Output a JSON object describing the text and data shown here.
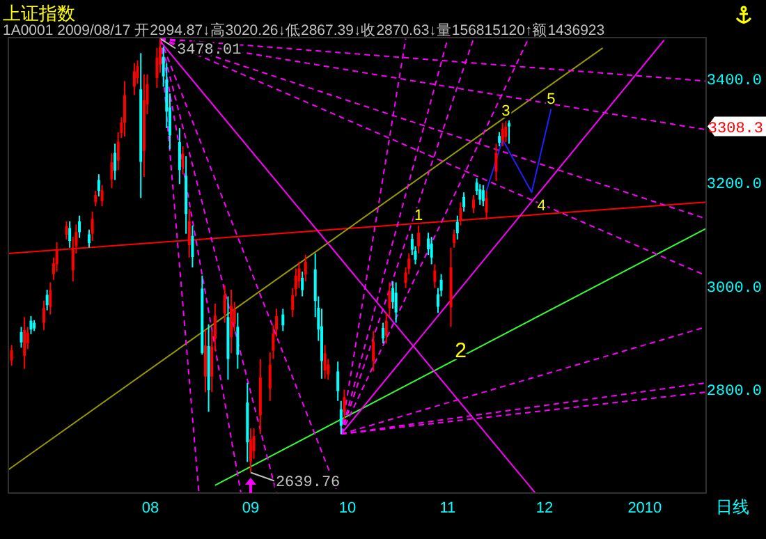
{
  "chart_data": {
    "type": "candlestick",
    "title": "上证指数",
    "subtitle": "1A0001 2009/08/17 开2994.87↓高3020.26↓低2867.39↓收2870.63↓量156815120↑额1436923",
    "x": [
      "2009-06-19",
      "2009-06-22",
      "2009-06-23",
      "2009-06-24",
      "2009-06-25",
      "2009-06-26",
      "2009-06-29",
      "2009-06-30",
      "2009-07-01",
      "2009-07-02",
      "2009-07-03",
      "2009-07-06",
      "2009-07-07",
      "2009-07-08",
      "2009-07-09",
      "2009-07-10",
      "2009-07-13",
      "2009-07-14",
      "2009-07-15",
      "2009-07-16",
      "2009-07-17",
      "2009-07-20",
      "2009-07-21",
      "2009-07-22",
      "2009-07-23",
      "2009-07-24",
      "2009-07-27",
      "2009-07-28",
      "2009-07-29",
      "2009-07-30",
      "2009-07-31",
      "2009-08-03",
      "2009-08-04",
      "2009-08-05",
      "2009-08-06",
      "2009-08-07",
      "2009-08-10",
      "2009-08-11",
      "2009-08-12",
      "2009-08-13",
      "2009-08-14",
      "2009-08-17",
      "2009-08-18",
      "2009-08-19",
      "2009-08-20",
      "2009-08-21",
      "2009-08-24",
      "2009-08-25",
      "2009-08-26",
      "2009-08-27",
      "2009-08-28",
      "2009-08-31",
      "2009-09-01",
      "2009-09-02",
      "2009-09-04",
      "2009-09-07",
      "2009-09-08",
      "2009-09-09",
      "2009-09-11",
      "2009-09-14",
      "2009-09-15",
      "2009-09-16",
      "2009-09-17",
      "2009-09-18",
      "2009-09-21",
      "2009-09-22",
      "2009-09-23",
      "2009-09-24",
      "2009-09-25",
      "2009-09-28",
      "2009-09-29",
      "2009-09-30",
      "2009-10-09",
      "2009-10-12",
      "2009-10-13",
      "2009-10-14",
      "2009-10-15",
      "2009-10-16",
      "2009-10-19",
      "2009-10-20",
      "2009-10-21",
      "2009-10-22",
      "2009-10-23",
      "2009-10-26",
      "2009-10-27",
      "2009-10-28",
      "2009-10-29",
      "2009-10-30",
      "2009-11-02",
      "2009-11-03",
      "2009-11-04",
      "2009-11-05",
      "2009-11-06",
      "2009-11-09",
      "2009-11-10",
      "2009-11-11",
      "2009-11-12",
      "2009-11-13",
      "2009-11-16",
      "2009-11-17",
      "2009-11-18",
      "2009-11-19",
      "2009-11-20"
    ],
    "ohlc": [
      [
        2856,
        2886,
        2846,
        2876
      ],
      [
        2911,
        2921,
        2881,
        2891
      ],
      [
        2865,
        2940,
        2840,
        2915
      ],
      [
        2889,
        2921,
        2878,
        2910
      ],
      [
        2933,
        2942,
        2907,
        2916
      ],
      [
        2929,
        2934,
        2913,
        2918
      ],
      [
        2929,
        2972,
        2915,
        2958
      ],
      [
        2983,
        2993,
        2953,
        2963
      ],
      [
        2960,
        3007,
        2945,
        2992
      ],
      [
        3023,
        3055,
        3012,
        3044
      ],
      [
        3042,
        3085,
        3028,
        3071
      ],
      [
        3099,
        3125,
        3090,
        3116
      ],
      [
        3112,
        3125,
        3074,
        3087
      ],
      [
        3030,
        3095,
        3009,
        3074
      ],
      [
        3077,
        3119,
        3063,
        3105
      ],
      [
        3125,
        3136,
        3093,
        3104
      ],
      [
        3100,
        3109,
        3074,
        3083
      ],
      [
        3101,
        3144,
        3087,
        3130
      ],
      [
        3162,
        3184,
        3154,
        3176
      ],
      [
        3205,
        3216,
        3173,
        3184
      ],
      [
        3164,
        3195,
        3154,
        3185
      ],
      [
        3206,
        3256,
        3189,
        3239
      ],
      [
        3257,
        3275,
        3205,
        3223
      ],
      [
        3242,
        3297,
        3224,
        3279
      ],
      [
        3296,
        3326,
        3286,
        3316
      ],
      [
        3316,
        3396,
        3289,
        3369
      ],
      [
        3385,
        3431,
        3369,
        3415
      ],
      [
        3402,
        3436,
        3391,
        3425
      ],
      [
        3380,
        3450,
        3170,
        3240
      ],
      [
        3261,
        3409,
        3211,
        3359
      ],
      [
        3351,
        3409,
        3332,
        3390
      ],
      [
        3402,
        3460,
        3383,
        3441
      ],
      [
        3428,
        3478.01,
        3412,
        3462
      ],
      [
        3443,
        3463,
        3385,
        3405
      ],
      [
        3399,
        3431,
        3305,
        3337
      ],
      [
        3345,
        3372,
        3264,
        3291
      ],
      [
        3278,
        3305,
        3197,
        3224
      ],
      [
        3230,
        3270,
        3216,
        3256
      ],
      [
        3213,
        3251,
        3101,
        3139
      ],
      [
        3079,
        3149,
        3055,
        3125
      ],
      [
        3097,
        3117,
        3036,
        3056
      ],
      [
        2994.87,
        3020.26,
        2867.39,
        2870.63
      ],
      [
        2825,
        2915,
        2795,
        2885
      ],
      [
        2884,
        2926,
        2757,
        2799
      ],
      [
        2825,
        2913,
        2795,
        2883
      ],
      [
        2898,
        2966,
        2875,
        2943
      ],
      [
        2947,
        3001,
        2929,
        2983
      ],
      [
        2940,
        2980,
        2819,
        2859
      ],
      [
        2901,
        2993,
        2870,
        2962
      ],
      [
        2927,
        2969,
        2913,
        2955
      ],
      [
        2921,
        2948,
        2840,
        2867
      ],
      [
        2775,
        2813,
        2660,
        2698
      ],
      [
        2661,
        2725,
        2639.76,
        2704
      ],
      [
        2681,
        2725,
        2666,
        2710
      ],
      [
        2750,
        2859,
        2714,
        2823
      ],
      [
        2802,
        2872,
        2778,
        2848
      ],
      [
        2875,
        2924,
        2859,
        2908
      ],
      [
        2916,
        2956,
        2902,
        2942
      ],
      [
        2945,
        2956,
        2913,
        2924
      ],
      [
        2954,
        2996,
        2940,
        2982
      ],
      [
        2994,
        3034,
        2980,
        3020
      ],
      [
        3009,
        3047,
        2996,
        3034
      ],
      [
        3016,
        3028,
        2980,
        2992
      ],
      [
        3022,
        3060,
        3009,
        3047
      ],
      [
        3032,
        3063,
        2940,
        2971
      ],
      [
        2958,
        2980,
        2894,
        2916
      ],
      [
        2922,
        2956,
        2821,
        2855
      ],
      [
        2837,
        2886,
        2821,
        2870
      ],
      [
        2829,
        2859,
        2819,
        2849
      ],
      [
        2835,
        2854,
        2778,
        2797
      ],
      [
        2762,
        2778,
        2714,
        2730
      ],
      [
        2756,
        2800,
        2741,
        2785
      ],
      [
        2855,
        2913,
        2835,
        2893
      ],
      [
        2919,
        2929,
        2889,
        2899
      ],
      [
        2904,
        2948,
        2889,
        2933
      ],
      [
        2957,
        3007,
        2940,
        2990
      ],
      [
        2996,
        3009,
        2956,
        2969
      ],
      [
        2987,
        3007,
        2929,
        2949
      ],
      [
        3006,
        3036,
        2996,
        3026
      ],
      [
        3033,
        3063,
        3023,
        3053
      ],
      [
        3091,
        3101,
        3060,
        3070
      ],
      [
        3068,
        3077,
        3042,
        3051
      ],
      [
        3077,
        3117,
        3063,
        3103
      ],
      [
        3092,
        3103,
        3060,
        3071
      ],
      [
        3082,
        3095,
        3042,
        3055
      ],
      [
        3008,
        3042,
        2996,
        3030
      ],
      [
        2984,
        2996,
        2948,
        2960
      ],
      [
        3012,
        3023,
        2980,
        2991
      ],
      [
        2959,
        3074,
        2921,
        3036
      ],
      [
        3083,
        3109,
        3074,
        3100
      ],
      [
        3124,
        3136,
        3090,
        3102
      ],
      [
        3128,
        3162,
        3117,
        3151
      ],
      [
        3172,
        3181,
        3144,
        3153
      ],
      [
        3150,
        3176,
        3141,
        3167
      ],
      [
        3200,
        3208,
        3176,
        3184
      ],
      [
        3187,
        3197,
        3157,
        3167
      ],
      [
        3185,
        3195,
        3154,
        3164
      ],
      [
        3142,
        3184,
        3128,
        3170
      ],
      [
        3221,
        3275,
        3203,
        3257
      ],
      [
        3290,
        3297,
        3270,
        3277
      ],
      [
        3281,
        3315,
        3270,
        3304
      ],
      [
        3288,
        3318,
        3278,
        3308
      ],
      [
        3315,
        3320,
        3275,
        3308.3
      ]
    ],
    "colors": [
      "#ff0000",
      "#00ffff",
      "#ff0000",
      "#ff0000",
      "#00ffff",
      "#00ffff",
      "#ff0000",
      "#00ffff",
      "#ff0000",
      "#ff0000",
      "#ff0000",
      "#ff0000",
      "#00ffff",
      "#ff0000",
      "#ff0000",
      "#00ffff",
      "#00ffff",
      "#ff0000",
      "#ff0000",
      "#00ffff",
      "#ff0000",
      "#ff0000",
      "#00ffff",
      "#ff0000",
      "#ff0000",
      "#ff0000",
      "#ff0000",
      "#ff0000",
      "#00ffff",
      "#ff0000",
      "#ff0000",
      "#ff0000",
      "#ff0000",
      "#00ffff",
      "#00ffff",
      "#00ffff",
      "#00ffff",
      "#ff0000",
      "#00ffff",
      "#ff0000",
      "#00ffff",
      "#00ffff",
      "#ff0000",
      "#00ffff",
      "#ff0000",
      "#ff0000",
      "#ff0000",
      "#00ffff",
      "#ff0000",
      "#ff0000",
      "#00ffff",
      "#00ffff",
      "#ff0000",
      "#ff0000",
      "#ff0000",
      "#ff0000",
      "#ff0000",
      "#ff0000",
      "#00ffff",
      "#ff0000",
      "#ff0000",
      "#ff0000",
      "#00ffff",
      "#ff0000",
      "#00ffff",
      "#00ffff",
      "#00ffff",
      "#ff0000",
      "#ff0000",
      "#00ffff",
      "#00ffff",
      "#ff0000",
      "#ff0000",
      "#00ffff",
      "#ff0000",
      "#ff0000",
      "#00ffff",
      "#00ffff",
      "#ff0000",
      "#ff0000",
      "#00ffff",
      "#00ffff",
      "#ff0000",
      "#00ffff",
      "#00ffff",
      "#ff0000",
      "#00ffff",
      "#00ffff",
      "#ff0000",
      "#ff0000",
      "#00ffff",
      "#ff0000",
      "#00ffff",
      "#ff0000",
      "#00ffff",
      "#00ffff",
      "#00ffff",
      "#ff0000",
      "#ff0000",
      "#00ffff",
      "#ff0000",
      "#ff0000",
      "#00ffff"
    ],
    "series": [
      {
        "type": "line",
        "color": "#ff0000",
        "x": [
          "2009-06-18",
          "2010-01-20"
        ],
        "values": [
          3063,
          3162
        ]
      },
      {
        "type": "line",
        "color": "#999900",
        "x": [
          "2009-06-18",
          "2009-12-19"
        ],
        "values": [
          2645,
          3460
        ]
      },
      {
        "type": "line",
        "color": "#33ff33",
        "x": [
          "2009-08-21",
          "2010-01-20"
        ],
        "values": [
          2615,
          3111
        ]
      },
      {
        "type": "line",
        "color": "#ff00ff",
        "x": [
          "2009-08-04",
          "2009-11-28"
        ],
        "values": [
          3473,
          2601
        ]
      },
      {
        "type": "line",
        "color": "#ff00ff",
        "x": [
          "2009-09-29",
          "2010-01-07"
        ],
        "values": [
          2714,
          3475
        ]
      },
      {
        "type": "line",
        "color": "#ff00ff",
        "line_style": "dashed",
        "x": [
          "2009-08-04",
          "2010-01-20"
        ],
        "values": [
          3478,
          3396
        ]
      },
      {
        "type": "line",
        "color": "#ff00ff",
        "line_style": "dashed",
        "x": [
          "2009-08-04",
          "2010-01-20"
        ],
        "values": [
          3478,
          3302
        ]
      },
      {
        "type": "line",
        "color": "#ff00ff",
        "line_style": "dashed",
        "x": [
          "2009-08-04",
          "2010-01-20"
        ],
        "values": [
          3478,
          3130
        ]
      },
      {
        "type": "line",
        "color": "#ff00ff",
        "line_style": "dashed",
        "x": [
          "2009-08-04",
          "2010-01-20"
        ],
        "values": [
          3478,
          3020
        ]
      },
      {
        "type": "line",
        "color": "#ff00ff",
        "line_style": "dashed",
        "x": [
          "2009-08-04",
          "2009-08-16"
        ],
        "values": [
          3478,
          2600
        ]
      },
      {
        "type": "line",
        "color": "#ff00ff",
        "line_style": "dashed",
        "x": [
          "2009-08-04",
          "2009-08-29"
        ],
        "values": [
          3478,
          2600
        ]
      },
      {
        "type": "line",
        "color": "#ff00ff",
        "line_style": "dashed",
        "x": [
          "2009-08-04",
          "2009-09-09"
        ],
        "values": [
          3478,
          2600
        ]
      },
      {
        "type": "line",
        "color": "#ff00ff",
        "line_style": "dashed",
        "x": [
          "2009-08-04",
          "2009-09-28"
        ],
        "values": [
          3478,
          2600
        ]
      },
      {
        "type": "line",
        "color": "#ff00ff",
        "line_style": "dashed",
        "x": [
          "2009-09-29",
          "2009-10-19"
        ],
        "values": [
          2714,
          3478
        ]
      },
      {
        "type": "line",
        "color": "#ff00ff",
        "line_style": "dashed",
        "x": [
          "2009-09-29",
          "2009-11-01"
        ],
        "values": [
          2714,
          3478
        ]
      },
      {
        "type": "line",
        "color": "#ff00ff",
        "line_style": "dashed",
        "x": [
          "2009-09-29",
          "2009-11-09"
        ],
        "values": [
          2714,
          3478
        ]
      },
      {
        "type": "line",
        "color": "#ff00ff",
        "line_style": "dashed",
        "x": [
          "2009-09-29",
          "2009-11-26"
        ],
        "values": [
          2714,
          3478
        ]
      },
      {
        "type": "line",
        "color": "#ff00ff",
        "line_style": "dashed",
        "x": [
          "2009-09-29",
          "2010-01-20"
        ],
        "values": [
          2714,
          2921
        ]
      },
      {
        "type": "line",
        "color": "#ff00ff",
        "line_style": "dashed",
        "x": [
          "2009-09-29",
          "2010-01-20"
        ],
        "values": [
          2714,
          2813
        ]
      },
      {
        "type": "line",
        "color": "#ff00ff",
        "line_style": "dashed",
        "x": [
          "2009-09-29",
          "2010-01-20"
        ],
        "values": [
          2714,
          2795
        ]
      },
      {
        "type": "line",
        "color": "#2020ff",
        "x": [
          "2009-11-13",
          "2009-11-18",
          "2009-11-27",
          "2009-12-03"
        ],
        "values": [
          3184,
          3283,
          3181,
          3342
        ]
      }
    ],
    "xlim": [
      "2009-06-18",
      "2010-01-20"
    ],
    "xticks": [
      {
        "value": "2009-08-01",
        "label": "08"
      },
      {
        "value": "2009-09-01",
        "label": "09"
      },
      {
        "value": "2009-10-01",
        "label": "10"
      },
      {
        "value": "2009-11-01",
        "label": "11"
      },
      {
        "value": "2009-12-01",
        "label": "12"
      },
      {
        "value": "2010-01-01",
        "label": "2010"
      }
    ],
    "ylim": [
      2600,
      3480
    ],
    "yticks": [
      {
        "value": 2800,
        "label": "2800.0"
      },
      {
        "value": 3000,
        "label": "3000.0"
      },
      {
        "value": 3200,
        "label": "3200.0"
      },
      {
        "value": 3400,
        "label": "3400.0"
      }
    ],
    "annotations": [
      {
        "text": "3478.01",
        "x": "2009-08-04",
        "y": 3478.01
      },
      {
        "text": "2639.76",
        "x": "2009-09-01",
        "y": 2639.76
      },
      {
        "text": "1",
        "x": "2009-10-23",
        "y": 3117
      },
      {
        "text": "2",
        "x": "2009-11-02",
        "y": 2921
      },
      {
        "text": "3",
        "x": "2009-11-19",
        "y": 3318
      },
      {
        "text": "4",
        "x": "2009-11-27",
        "y": 3181
      },
      {
        "text": "5",
        "x": "2009-12-03",
        "y": 3342
      },
      "3308.3"
    ],
    "xlabel": "日线"
  }
}
